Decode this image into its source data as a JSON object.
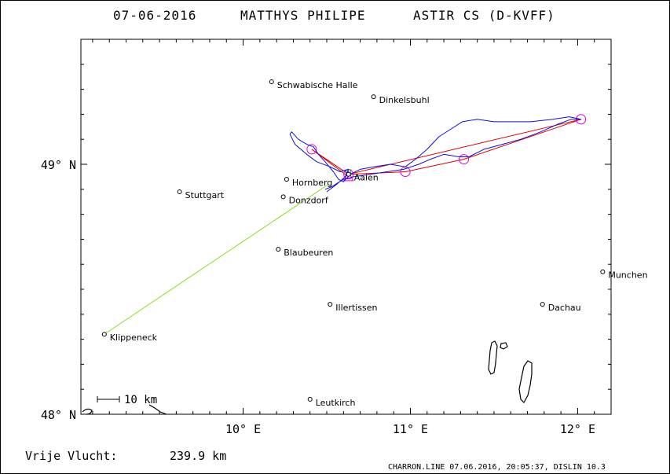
{
  "header": {
    "date": "07-06-2016",
    "pilot": "MATTHYS PHILIPE",
    "glider": "ASTIR CS (D-KVFF)"
  },
  "axes": {
    "lat_labels": [
      {
        "value": 49,
        "label": "49° N"
      },
      {
        "value": 48,
        "label": "48° N"
      }
    ],
    "lon_labels": [
      {
        "value": 10,
        "label": "10° E"
      },
      {
        "value": 11,
        "label": "11° E"
      },
      {
        "value": 12,
        "label": "12° E"
      }
    ],
    "lon_range": [
      9.03,
      12.2
    ],
    "lat_range": [
      48.0,
      49.5
    ]
  },
  "scale_bar": {
    "label": "10 km"
  },
  "cities": [
    {
      "name": "Schwabische Halle",
      "lon": 10.17,
      "lat": 49.33
    },
    {
      "name": "Dinkelsbuhl",
      "lon": 10.78,
      "lat": 49.27
    },
    {
      "name": "Hornberg",
      "lon": 10.26,
      "lat": 48.94
    },
    {
      "name": "Aalen",
      "lon": 10.63,
      "lat": 48.96
    },
    {
      "name": "Stuttgart",
      "lon": 9.62,
      "lat": 48.89
    },
    {
      "name": "Donzdorf",
      "lon": 10.24,
      "lat": 48.87
    },
    {
      "name": "Blaubeuren",
      "lon": 10.21,
      "lat": 48.66
    },
    {
      "name": "Munchen",
      "lon": 12.15,
      "lat": 48.57
    },
    {
      "name": "Illertissen",
      "lon": 10.52,
      "lat": 48.44
    },
    {
      "name": "Dachau",
      "lon": 11.79,
      "lat": 48.44
    },
    {
      "name": "Klippeneck",
      "lon": 9.17,
      "lat": 48.32
    },
    {
      "name": "Leutkirch",
      "lon": 10.4,
      "lat": 48.06
    }
  ],
  "task": {
    "color": "#e00000",
    "points": [
      {
        "lon": 10.63,
        "lat": 48.95
      },
      {
        "lon": 10.41,
        "lat": 49.06
      },
      {
        "lon": 10.63,
        "lat": 48.96
      },
      {
        "lon": 12.02,
        "lat": 49.18
      },
      {
        "lon": 11.32,
        "lat": 49.02
      },
      {
        "lon": 10.97,
        "lat": 48.97
      },
      {
        "lon": 10.63,
        "lat": 48.96
      }
    ],
    "turnpoint_marker_color": "#e000e0"
  },
  "glide_line": {
    "color": "#88dd22",
    "from": {
      "lon": 9.17,
      "lat": 48.32
    },
    "to": {
      "lon": 10.51,
      "lat": 48.92
    }
  },
  "track": {
    "color": "#1010e0",
    "points": [
      {
        "lon": 10.5,
        "lat": 48.89
      },
      {
        "lon": 10.56,
        "lat": 48.92
      },
      {
        "lon": 10.61,
        "lat": 48.95
      },
      {
        "lon": 10.63,
        "lat": 48.98
      },
      {
        "lon": 10.58,
        "lat": 48.97
      },
      {
        "lon": 10.52,
        "lat": 48.99
      },
      {
        "lon": 10.44,
        "lat": 49.01
      },
      {
        "lon": 10.38,
        "lat": 49.04
      },
      {
        "lon": 10.31,
        "lat": 49.08
      },
      {
        "lon": 10.28,
        "lat": 49.12
      },
      {
        "lon": 10.29,
        "lat": 49.13
      },
      {
        "lon": 10.33,
        "lat": 49.1
      },
      {
        "lon": 10.38,
        "lat": 49.08
      },
      {
        "lon": 10.42,
        "lat": 49.07
      },
      {
        "lon": 10.45,
        "lat": 49.04
      },
      {
        "lon": 10.49,
        "lat": 49.01
      },
      {
        "lon": 10.54,
        "lat": 48.97
      },
      {
        "lon": 10.57,
        "lat": 48.94
      },
      {
        "lon": 10.6,
        "lat": 48.93
      },
      {
        "lon": 10.64,
        "lat": 48.96
      },
      {
        "lon": 10.7,
        "lat": 48.98
      },
      {
        "lon": 10.78,
        "lat": 48.99
      },
      {
        "lon": 10.88,
        "lat": 49.0
      },
      {
        "lon": 10.97,
        "lat": 48.99
      },
      {
        "lon": 11.03,
        "lat": 49.02
      },
      {
        "lon": 11.1,
        "lat": 49.06
      },
      {
        "lon": 11.17,
        "lat": 49.11
      },
      {
        "lon": 11.24,
        "lat": 49.14
      },
      {
        "lon": 11.31,
        "lat": 49.17
      },
      {
        "lon": 11.4,
        "lat": 49.18
      },
      {
        "lon": 11.5,
        "lat": 49.17
      },
      {
        "lon": 11.6,
        "lat": 49.17
      },
      {
        "lon": 11.72,
        "lat": 49.17
      },
      {
        "lon": 11.85,
        "lat": 49.18
      },
      {
        "lon": 11.95,
        "lat": 49.19
      },
      {
        "lon": 12.02,
        "lat": 49.18
      },
      {
        "lon": 11.96,
        "lat": 49.18
      },
      {
        "lon": 11.88,
        "lat": 49.16
      },
      {
        "lon": 11.78,
        "lat": 49.13
      },
      {
        "lon": 11.66,
        "lat": 49.1
      },
      {
        "lon": 11.55,
        "lat": 49.08
      },
      {
        "lon": 11.44,
        "lat": 49.06
      },
      {
        "lon": 11.35,
        "lat": 49.03
      },
      {
        "lon": 11.29,
        "lat": 49.03
      },
      {
        "lon": 11.2,
        "lat": 49.04
      },
      {
        "lon": 11.12,
        "lat": 49.02
      },
      {
        "lon": 11.05,
        "lat": 49.0
      },
      {
        "lon": 10.96,
        "lat": 48.98
      },
      {
        "lon": 10.86,
        "lat": 48.97
      },
      {
        "lon": 10.76,
        "lat": 48.96
      },
      {
        "lon": 10.66,
        "lat": 48.95
      },
      {
        "lon": 10.6,
        "lat": 48.94
      },
      {
        "lon": 10.53,
        "lat": 48.91
      },
      {
        "lon": 10.49,
        "lat": 48.9
      }
    ]
  },
  "footer": {
    "distance_label": "Vrije Vlucht:",
    "distance_value": "239.9 km",
    "credit": "CHARRON.LINE 07.06.2016, 20:05:37, DISLIN 10.3"
  }
}
